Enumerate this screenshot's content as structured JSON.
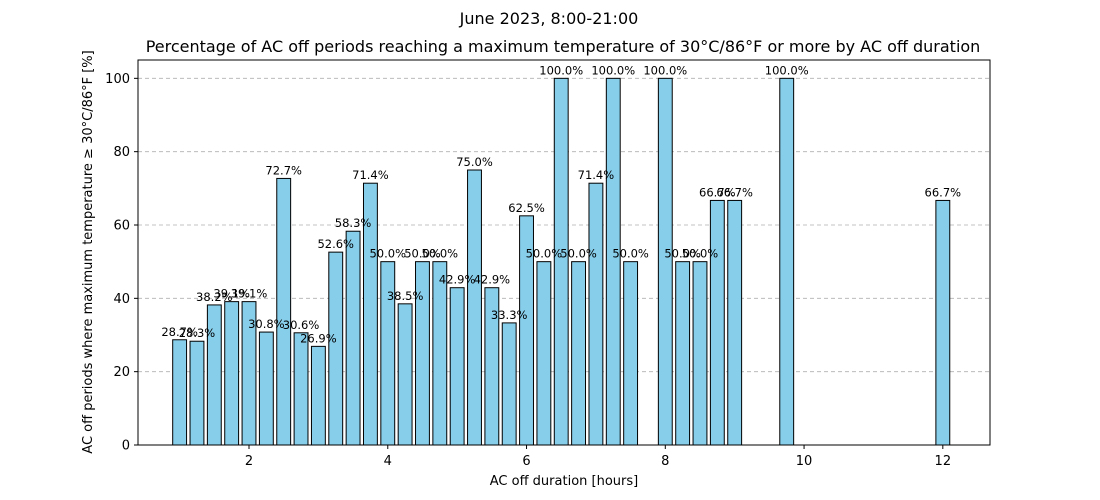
{
  "chart_data": {
    "type": "bar",
    "title": "June 2023, 8:00-21:00",
    "subtitle": "Percentage of AC off periods reaching a maximum temperature of 30°C/86°F or more by AC off duration",
    "xlabel": "AC off duration [hours]",
    "ylabel": "AC off periods where maximum temperature ≥ 30°C/86°F [%]",
    "xlim": [
      0.4,
      12.68
    ],
    "ylim": [
      0,
      105
    ],
    "xticks": [
      2,
      4,
      6,
      8,
      10,
      12
    ],
    "yticks": [
      0,
      20,
      40,
      60,
      80,
      100
    ],
    "grid": "y",
    "bar_color": "#87ceeb",
    "bar_edge_color": "#000000",
    "bar_width": 0.2,
    "x": [
      1.0,
      1.25,
      1.5,
      1.75,
      2.0,
      2.25,
      2.5,
      2.75,
      3.0,
      3.25,
      3.5,
      3.75,
      4.0,
      4.25,
      4.5,
      4.75,
      5.0,
      5.25,
      5.5,
      5.75,
      6.0,
      6.25,
      6.5,
      6.75,
      7.0,
      7.25,
      7.5,
      8.0,
      8.25,
      8.5,
      8.75,
      9.0,
      9.75,
      12.0
    ],
    "values": [
      28.7,
      28.3,
      38.2,
      39.1,
      39.1,
      30.8,
      72.7,
      30.6,
      26.9,
      52.6,
      58.3,
      71.4,
      50.0,
      38.5,
      50.0,
      50.0,
      42.9,
      75.0,
      42.9,
      33.3,
      62.5,
      50.0,
      100.0,
      50.0,
      71.4,
      100.0,
      50.0,
      100.0,
      50.0,
      50.0,
      66.7,
      66.7,
      100.0,
      66.7
    ],
    "labels": [
      "28.7%",
      "28.3%",
      "38.2%",
      "39.1%",
      "39.1%",
      "30.8%",
      "72.7%",
      "30.6%",
      "26.9%",
      "52.6%",
      "58.3%",
      "71.4%",
      "50.0%",
      "38.5%",
      "50.0%",
      "50.0%",
      "42.9%",
      "75.0%",
      "42.9%",
      "33.3%",
      "62.5%",
      "50.0%",
      "100.0%",
      "50.0%",
      "71.4%",
      "100.0%",
      "50.0%",
      "100.0%",
      "50.0%",
      "50.0%",
      "66.7%",
      "66.7%",
      "100.0%",
      "66.7%"
    ]
  }
}
